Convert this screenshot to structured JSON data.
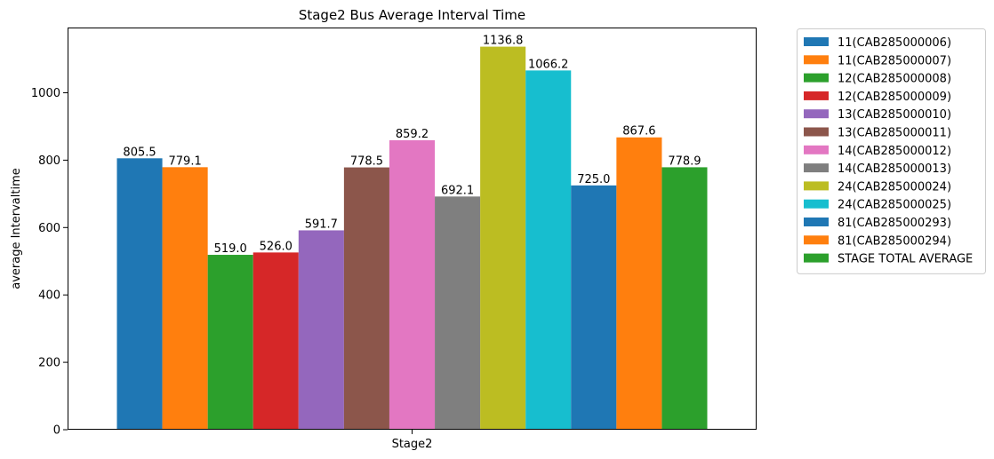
{
  "chart_data": {
    "type": "bar",
    "title": "Stage2 Bus Average Interval Time",
    "xlabel": "",
    "ylabel": "average Intervaltime",
    "categories": [
      "Stage2"
    ],
    "ylim": [
      0,
      1193.64
    ],
    "yticks": [
      0,
      200,
      400,
      600,
      800,
      1000
    ],
    "legend_position": "outside-right",
    "grid": false,
    "series": [
      {
        "name": "11(CAB285000006)",
        "values": [
          805.5
        ],
        "label": "805.5",
        "color": "#1f77b4"
      },
      {
        "name": "11(CAB285000007)",
        "values": [
          779.1
        ],
        "label": "779.1",
        "color": "#ff7f0e"
      },
      {
        "name": "12(CAB285000008)",
        "values": [
          519.0
        ],
        "label": "519.0",
        "color": "#2ca02c"
      },
      {
        "name": "12(CAB285000009)",
        "values": [
          526.0
        ],
        "label": "526.0",
        "color": "#d62728"
      },
      {
        "name": "13(CAB285000010)",
        "values": [
          591.7
        ],
        "label": "591.7",
        "color": "#9467bd"
      },
      {
        "name": "13(CAB285000011)",
        "values": [
          778.5
        ],
        "label": "778.5",
        "color": "#8c564b"
      },
      {
        "name": "14(CAB285000012)",
        "values": [
          859.2
        ],
        "label": "859.2",
        "color": "#e377c2"
      },
      {
        "name": "14(CAB285000013)",
        "values": [
          692.1
        ],
        "label": "692.1",
        "color": "#7f7f7f"
      },
      {
        "name": "24(CAB285000024)",
        "values": [
          1136.8
        ],
        "label": "1136.8",
        "color": "#bcbd22"
      },
      {
        "name": "24(CAB285000025)",
        "values": [
          1066.2
        ],
        "label": "1066.2",
        "color": "#17becf"
      },
      {
        "name": "81(CAB285000293)",
        "values": [
          725.0
        ],
        "label": "725.0",
        "color": "#1f77b4"
      },
      {
        "name": "81(CAB285000294)",
        "values": [
          867.6
        ],
        "label": "867.6",
        "color": "#ff7f0e"
      },
      {
        "name": "STAGE TOTAL AVERAGE",
        "values": [
          778.9
        ],
        "label": "778.9",
        "color": "#2ca02c"
      }
    ]
  }
}
